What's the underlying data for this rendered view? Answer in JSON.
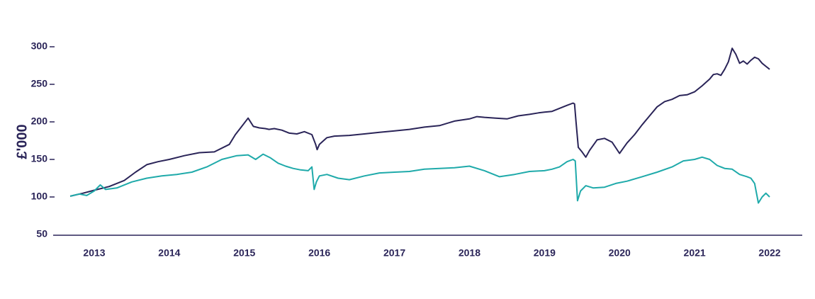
{
  "chart_data": {
    "type": "line",
    "title": "",
    "xlabel": "",
    "ylabel": "£'000",
    "ylim": [
      50,
      300
    ],
    "xlim": [
      2012.45,
      2022.3
    ],
    "yticks": [
      50,
      100,
      150,
      200,
      250,
      300
    ],
    "xticks": [
      2013,
      2014,
      2015,
      2016,
      2017,
      2018,
      2019,
      2020,
      2021,
      2022
    ],
    "xtick_labels": [
      "2013",
      "2014",
      "2015",
      "2016",
      "2017",
      "2018",
      "2019",
      "2020",
      "2021",
      "2022"
    ],
    "grid": false,
    "legend": "none",
    "colors": {
      "axis": "#2a2458",
      "text": "#2a2458"
    },
    "series": [
      {
        "color": "#2a2458",
        "x": [
          2012.68,
          2012.85,
          2013.0,
          2013.2,
          2013.4,
          2013.55,
          2013.7,
          2013.85,
          2014.0,
          2014.2,
          2014.4,
          2014.6,
          2014.8,
          2014.88,
          2014.95,
          2015.05,
          2015.12,
          2015.2,
          2015.28,
          2015.33,
          2015.4,
          2015.5,
          2015.6,
          2015.7,
          2015.8,
          2015.9,
          2015.95,
          2015.97,
          2016.0,
          2016.1,
          2016.2,
          2016.4,
          2016.6,
          2016.8,
          2017.0,
          2017.2,
          2017.4,
          2017.6,
          2017.8,
          2018.0,
          2018.1,
          2018.2,
          2018.35,
          2018.5,
          2018.65,
          2018.8,
          2018.92,
          2019.0,
          2019.1,
          2019.2,
          2019.3,
          2019.38,
          2019.4,
          2019.42,
          2019.45,
          2019.5,
          2019.55,
          2019.6,
          2019.7,
          2019.8,
          2019.9,
          2020.0,
          2020.05,
          2020.1,
          2020.2,
          2020.3,
          2020.4,
          2020.5,
          2020.6,
          2020.7,
          2020.8,
          2020.9,
          2021.0,
          2021.1,
          2021.2,
          2021.25,
          2021.3,
          2021.35,
          2021.4,
          2021.45,
          2021.5,
          2021.55,
          2021.6,
          2021.65,
          2021.7,
          2021.75,
          2021.8,
          2021.85,
          2021.9,
          2021.95,
          2022.0
        ],
        "values": [
          101,
          105,
          109,
          114,
          122,
          133,
          143,
          147,
          150,
          155,
          159,
          160,
          170,
          183,
          192,
          205,
          194,
          192,
          191,
          190,
          191,
          189,
          185,
          184,
          187,
          183,
          170,
          163,
          170,
          179,
          181,
          182,
          184,
          186,
          188,
          190,
          193,
          195,
          201,
          204,
          207,
          206,
          205,
          204,
          208,
          210,
          212,
          213,
          214,
          218,
          222,
          225,
          224,
          200,
          166,
          160,
          153,
          162,
          176,
          178,
          173,
          158,
          165,
          172,
          183,
          196,
          208,
          220,
          227,
          230,
          235,
          236,
          240,
          248,
          257,
          263,
          264,
          262,
          270,
          280,
          298,
          290,
          278,
          281,
          277,
          282,
          286,
          284,
          278,
          274,
          270
        ]
      },
      {
        "color": "#1faaaa",
        "x": [
          2012.68,
          2012.8,
          2012.9,
          2013.0,
          2013.08,
          2013.15,
          2013.3,
          2013.5,
          2013.7,
          2013.9,
          2014.1,
          2014.3,
          2014.5,
          2014.7,
          2014.9,
          2015.05,
          2015.15,
          2015.25,
          2015.35,
          2015.45,
          2015.55,
          2015.65,
          2015.75,
          2015.85,
          2015.9,
          2015.93,
          2015.96,
          2016.0,
          2016.1,
          2016.25,
          2016.4,
          2016.6,
          2016.8,
          2017.0,
          2017.2,
          2017.4,
          2017.6,
          2017.8,
          2018.0,
          2018.2,
          2018.4,
          2018.6,
          2018.8,
          2019.0,
          2019.1,
          2019.2,
          2019.3,
          2019.38,
          2019.41,
          2019.44,
          2019.48,
          2019.55,
          2019.65,
          2019.8,
          2019.95,
          2020.1,
          2020.3,
          2020.5,
          2020.7,
          2020.85,
          2021.0,
          2021.1,
          2021.2,
          2021.3,
          2021.4,
          2021.5,
          2021.6,
          2021.7,
          2021.75,
          2021.8,
          2021.85,
          2021.9,
          2021.95,
          2022.0
        ],
        "values": [
          101,
          104,
          102,
          108,
          116,
          110,
          112,
          120,
          125,
          128,
          130,
          133,
          140,
          150,
          155,
          156,
          150,
          157,
          152,
          145,
          141,
          138,
          136,
          135,
          140,
          110,
          120,
          128,
          130,
          125,
          123,
          128,
          132,
          133,
          134,
          137,
          138,
          139,
          141,
          135,
          127,
          130,
          134,
          135,
          137,
          140,
          147,
          150,
          148,
          95,
          108,
          115,
          112,
          113,
          118,
          121,
          127,
          133,
          140,
          148,
          150,
          153,
          150,
          142,
          138,
          137,
          130,
          127,
          125,
          118,
          92,
          100,
          105,
          100
        ]
      }
    ]
  }
}
